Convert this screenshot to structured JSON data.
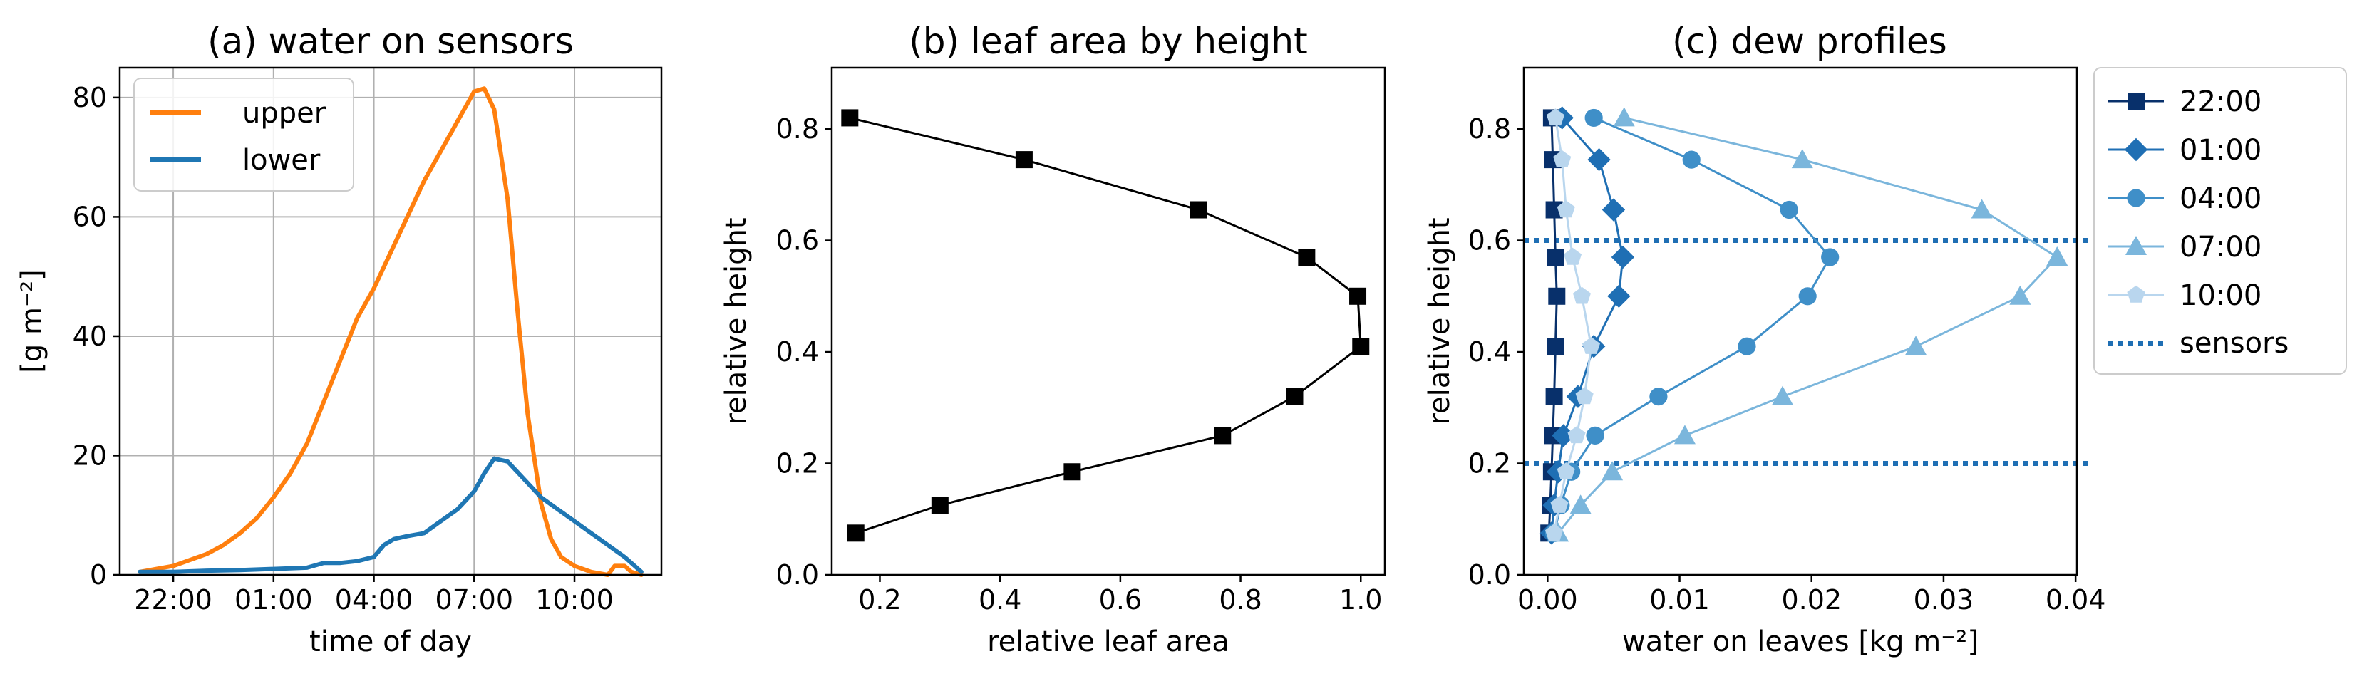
{
  "chart_data": [
    {
      "type": "line",
      "title": "(a) water on sensors",
      "xlabel": "time of day",
      "ylabel": "[g m⁻²]",
      "x_unit": "hours since 21:00",
      "xlim": [
        -0.6,
        15.6
      ],
      "ylim": [
        0,
        85
      ],
      "grid": true,
      "legend_position": "top-left",
      "x_ticks": [
        {
          "value": 1,
          "label": "22:00"
        },
        {
          "value": 4,
          "label": "01:00"
        },
        {
          "value": 7,
          "label": "04:00"
        },
        {
          "value": 10,
          "label": "07:00"
        },
        {
          "value": 13,
          "label": "10:00"
        }
      ],
      "y_ticks": [
        {
          "value": 0,
          "label": "0"
        },
        {
          "value": 20,
          "label": "20"
        },
        {
          "value": 40,
          "label": "40"
        },
        {
          "value": 60,
          "label": "60"
        },
        {
          "value": 80,
          "label": "80"
        }
      ],
      "series": [
        {
          "name": "upper",
          "color": "#ff7f0e",
          "x": [
            0,
            0.5,
            1,
            1.5,
            2,
            2.5,
            3,
            3.5,
            4,
            4.5,
            5,
            5.5,
            6,
            6.5,
            7,
            7.5,
            8,
            8.5,
            9,
            9.5,
            9.8,
            10,
            10.3,
            10.6,
            11,
            11.3,
            11.6,
            12,
            12.3,
            12.6,
            13,
            13.5,
            14,
            14.2,
            14.5,
            14.7,
            15
          ],
          "y": [
            0.5,
            1,
            1.5,
            2.5,
            3.5,
            5,
            7,
            9.5,
            13,
            17,
            22,
            29,
            36,
            43,
            48,
            54,
            60,
            66,
            71,
            76,
            79,
            81,
            81.5,
            78,
            63,
            44,
            27,
            12,
            6,
            3,
            1.5,
            0.5,
            0,
            1.5,
            1.5,
            0.5,
            0
          ]
        },
        {
          "name": "lower",
          "color": "#1f77b4",
          "x": [
            0,
            1,
            2,
            3,
            4,
            5,
            5.5,
            6,
            6.5,
            7,
            7.3,
            7.6,
            8,
            8.5,
            9,
            9.5,
            10,
            10.3,
            10.6,
            11,
            11.5,
            12,
            12.5,
            13,
            13.5,
            14,
            14.5,
            15
          ],
          "y": [
            0.5,
            0.5,
            0.7,
            0.8,
            1,
            1.2,
            2,
            2,
            2.3,
            3,
            5,
            6,
            6.5,
            7,
            9,
            11,
            14,
            17,
            19.5,
            19,
            16,
            13,
            11,
            9,
            7,
            5,
            3,
            0.5
          ]
        }
      ]
    },
    {
      "type": "line",
      "title": "(b) leaf area by height",
      "xlabel": "relative leaf area",
      "ylabel": "relative height",
      "xlim": [
        0.12,
        1.04
      ],
      "ylim": [
        0,
        0.91
      ],
      "grid": false,
      "x_ticks": [
        {
          "value": 0.2,
          "label": "0.2"
        },
        {
          "value": 0.4,
          "label": "0.4"
        },
        {
          "value": 0.6,
          "label": "0.6"
        },
        {
          "value": 0.8,
          "label": "0.8"
        },
        {
          "value": 1.0,
          "label": "1.0"
        }
      ],
      "y_ticks": [
        {
          "value": 0,
          "label": "0.0"
        },
        {
          "value": 0.2,
          "label": "0.2"
        },
        {
          "value": 0.4,
          "label": "0.4"
        },
        {
          "value": 0.6,
          "label": "0.6"
        },
        {
          "value": 0.8,
          "label": "0.8"
        }
      ],
      "series": [
        {
          "name": "leaf area",
          "color": "#000000",
          "marker": "square",
          "x": [
            0.16,
            0.3,
            0.52,
            0.77,
            0.89,
            1.0,
            0.995,
            0.91,
            0.73,
            0.44,
            0.15
          ],
          "y": [
            0.075,
            0.125,
            0.185,
            0.25,
            0.32,
            0.41,
            0.5,
            0.57,
            0.655,
            0.745,
            0.82
          ]
        }
      ]
    },
    {
      "type": "line",
      "title": "(c) dew profiles",
      "xlabel": "water on leaves [kg m⁻²]",
      "ylabel": "relative height",
      "xlim": [
        -0.0018,
        0.0401
      ],
      "ylim": [
        0,
        0.91
      ],
      "grid": false,
      "legend_position": "outside-right",
      "x_ticks": [
        {
          "value": 0,
          "label": "0.00"
        },
        {
          "value": 0.01,
          "label": "0.01"
        },
        {
          "value": 0.02,
          "label": "0.02"
        },
        {
          "value": 0.03,
          "label": "0.03"
        },
        {
          "value": 0.04,
          "label": "0.04"
        }
      ],
      "y_ticks": [
        {
          "value": 0,
          "label": "0.0"
        },
        {
          "value": 0.2,
          "label": "0.2"
        },
        {
          "value": 0.4,
          "label": "0.4"
        },
        {
          "value": 0.6,
          "label": "0.6"
        },
        {
          "value": 0.8,
          "label": "0.8"
        }
      ],
      "heights": [
        0.075,
        0.125,
        0.185,
        0.25,
        0.32,
        0.41,
        0.5,
        0.57,
        0.655,
        0.745,
        0.82
      ],
      "series": [
        {
          "name": "22:00",
          "color": "#08306b",
          "marker": "square",
          "x": [
            0.0001,
            0.0002,
            0.0003,
            0.0004,
            0.0005,
            0.0006,
            0.0007,
            0.0006,
            0.0005,
            0.0004,
            0.0003
          ]
        },
        {
          "name": "01:00",
          "color": "#1f6fb4",
          "marker": "diamond",
          "x": [
            0.0003,
            0.0005,
            0.0008,
            0.0012,
            0.0023,
            0.0035,
            0.0054,
            0.0057,
            0.005,
            0.0039,
            0.0011
          ]
        },
        {
          "name": "04:00",
          "color": "#3f8fc8",
          "marker": "circle",
          "x": [
            0.0005,
            0.001,
            0.0018,
            0.0036,
            0.0084,
            0.0151,
            0.0197,
            0.0214,
            0.0183,
            0.0109,
            0.0035
          ]
        },
        {
          "name": "07:00",
          "color": "#7bb6dc",
          "marker": "triangle",
          "x": [
            0.0008,
            0.0025,
            0.0049,
            0.0104,
            0.0178,
            0.0279,
            0.0358,
            0.0386,
            0.0329,
            0.0193,
            0.0058
          ]
        },
        {
          "name": "10:00",
          "color": "#b9d6ee",
          "marker": "pentagon",
          "x": [
            0.0005,
            0.0009,
            0.0014,
            0.0022,
            0.0028,
            0.0033,
            0.0026,
            0.0019,
            0.0014,
            0.0011,
            0.0006
          ]
        }
      ],
      "reference_lines": {
        "name": "sensors",
        "color": "#1f6fb4",
        "style": "dotted",
        "y": [
          0.2,
          0.6
        ]
      }
    }
  ]
}
